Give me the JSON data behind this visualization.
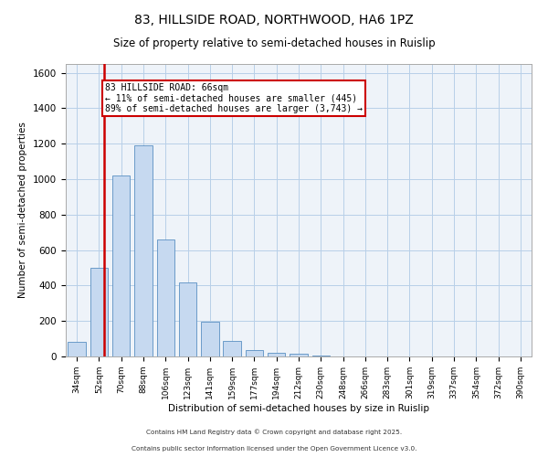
{
  "title1": "83, HILLSIDE ROAD, NORTHWOOD, HA6 1PZ",
  "title2": "Size of property relative to semi-detached houses in Ruislip",
  "xlabel": "Distribution of semi-detached houses by size in Ruislip",
  "ylabel": "Number of semi-detached properties",
  "categories": [
    "34sqm",
    "52sqm",
    "70sqm",
    "88sqm",
    "106sqm",
    "123sqm",
    "141sqm",
    "159sqm",
    "177sqm",
    "194sqm",
    "212sqm",
    "230sqm",
    "248sqm",
    "266sqm",
    "283sqm",
    "301sqm",
    "319sqm",
    "337sqm",
    "354sqm",
    "372sqm",
    "390sqm"
  ],
  "values": [
    80,
    500,
    1020,
    1190,
    660,
    420,
    195,
    90,
    35,
    20,
    15,
    5,
    0,
    0,
    0,
    0,
    0,
    0,
    0,
    0,
    0
  ],
  "bar_color": "#c6d9f0",
  "bar_edge_color": "#5a8fc2",
  "bar_edge_width": 0.6,
  "grid_color": "#b8cfe8",
  "bg_color": "#eef3f9",
  "marker_color": "#cc0000",
  "annotation_title": "83 HILLSIDE ROAD: 66sqm",
  "annotation_line1": "← 11% of semi-detached houses are smaller (445)",
  "annotation_line2": "89% of semi-detached houses are larger (3,743) →",
  "annotation_box_color": "#cc0000",
  "ylim": [
    0,
    1650
  ],
  "yticks": [
    0,
    200,
    400,
    600,
    800,
    1000,
    1200,
    1400,
    1600
  ],
  "footnote1": "Contains HM Land Registry data © Crown copyright and database right 2025.",
  "footnote2": "Contains public sector information licensed under the Open Government Licence v3.0."
}
